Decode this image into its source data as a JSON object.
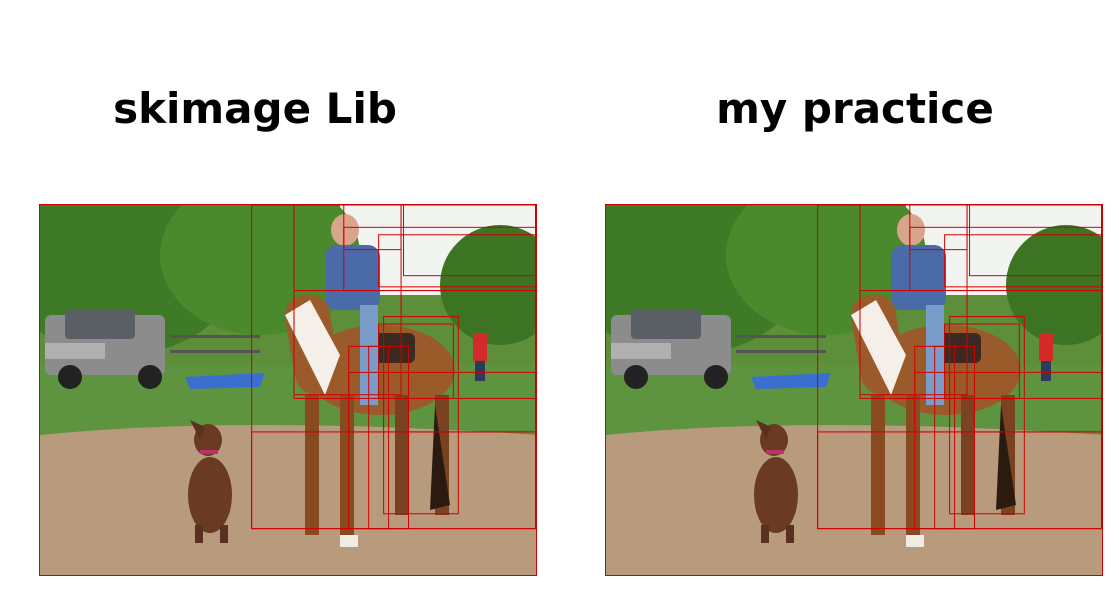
{
  "panels": [
    {
      "title": "skimage Lib",
      "image_icon": "horse-rider-dog-photo-icon",
      "box_color": "#d00000",
      "boxes": [
        [
          0.425,
          0.0,
          0.995,
          0.87
        ],
        [
          0.51,
          0.0,
          0.725,
          0.51
        ],
        [
          0.61,
          0.0,
          0.725,
          0.12
        ],
        [
          0.73,
          0.0,
          0.995,
          0.19
        ],
        [
          0.61,
          0.06,
          0.995,
          0.23
        ],
        [
          0.68,
          0.08,
          0.995,
          0.22
        ],
        [
          0.51,
          0.23,
          0.995,
          0.52
        ],
        [
          0.68,
          0.32,
          0.83,
          0.52
        ],
        [
          0.69,
          0.3,
          0.84,
          0.83
        ],
        [
          0.62,
          0.45,
          0.995,
          0.61
        ],
        [
          0.425,
          0.61,
          0.995,
          0.87
        ],
        [
          0.62,
          0.38,
          0.7,
          0.87
        ],
        [
          0.66,
          0.38,
          0.74,
          0.87
        ]
      ]
    },
    {
      "title": "my practice",
      "image_icon": "horse-rider-dog-photo-icon",
      "box_color": "#d00000",
      "boxes": [
        [
          0.425,
          0.0,
          0.995,
          0.87
        ],
        [
          0.51,
          0.0,
          0.725,
          0.51
        ],
        [
          0.61,
          0.0,
          0.725,
          0.12
        ],
        [
          0.73,
          0.0,
          0.995,
          0.19
        ],
        [
          0.61,
          0.06,
          0.995,
          0.23
        ],
        [
          0.68,
          0.08,
          0.995,
          0.22
        ],
        [
          0.51,
          0.23,
          0.995,
          0.52
        ],
        [
          0.68,
          0.32,
          0.83,
          0.52
        ],
        [
          0.69,
          0.3,
          0.84,
          0.83
        ],
        [
          0.62,
          0.45,
          0.995,
          0.61
        ],
        [
          0.425,
          0.61,
          0.995,
          0.87
        ],
        [
          0.62,
          0.38,
          0.7,
          0.87
        ],
        [
          0.66,
          0.38,
          0.74,
          0.87
        ]
      ]
    }
  ]
}
